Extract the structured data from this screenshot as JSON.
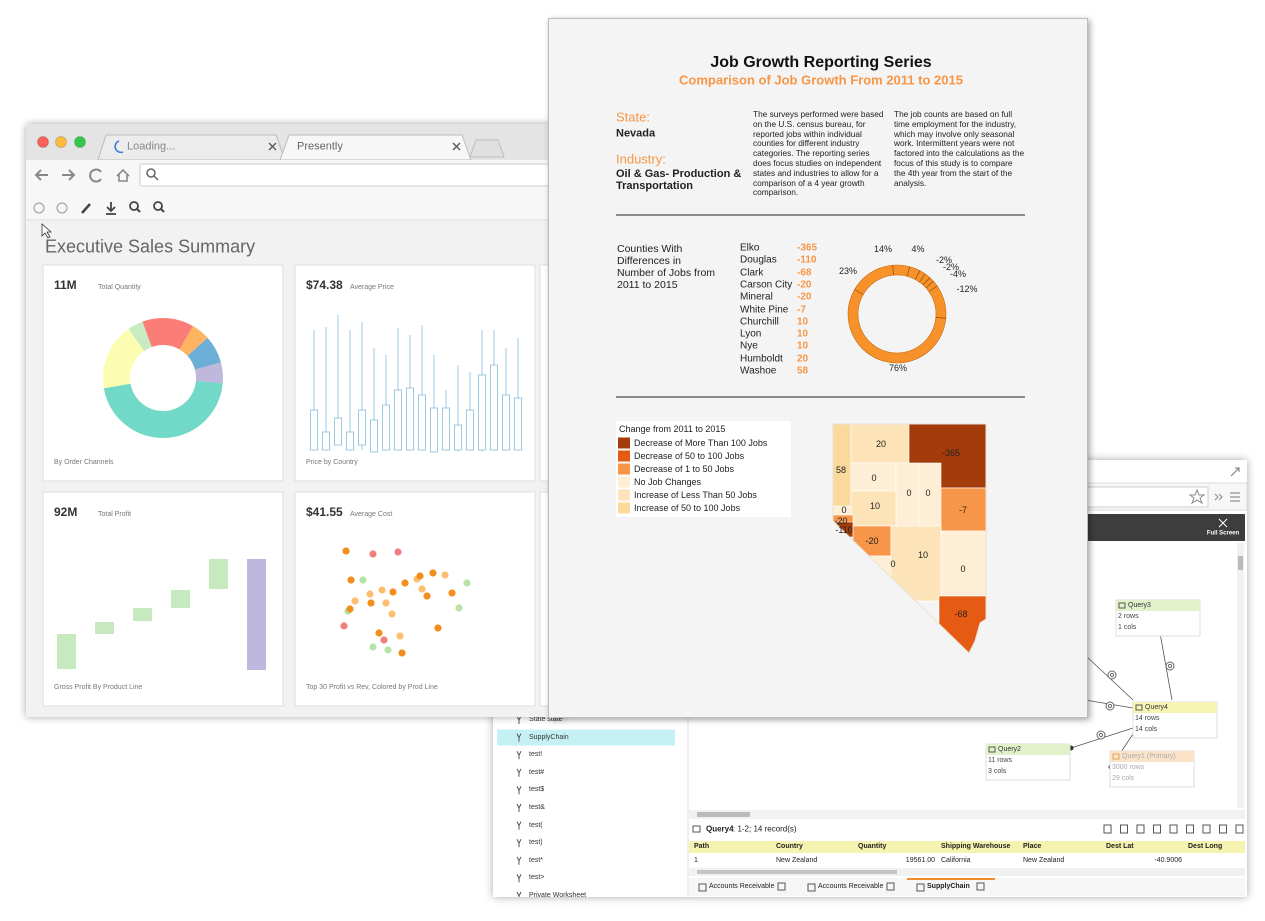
{
  "query_window": {
    "full_screen": "Full Screen",
    "tree": [
      "State state",
      "SupplyChain",
      "test!",
      "test#",
      "test$",
      "test&",
      "test(",
      "test)",
      "test*",
      "test>",
      "Private Worksheet"
    ],
    "nodes": [
      {
        "title": "Query3",
        "rows": "2 rows",
        "cols": "1 cols"
      },
      {
        "title": "Query4",
        "rows": "14 rows",
        "cols": "14 cols"
      },
      {
        "title": "Query2",
        "rows": "11 rows",
        "cols": "3 cols"
      },
      {
        "title": "Query1 (Primary)",
        "rows": "3000 rows",
        "cols": "29 cols"
      }
    ],
    "result": {
      "query": "Query4",
      "info": ": 1-2; 14 record(s)"
    },
    "table": {
      "headers": [
        "Path",
        "Country",
        "Quantity",
        "Shipping Warehouse",
        "Place",
        "Dest Lat",
        "Dest Long"
      ],
      "rows": [
        [
          "1",
          "New Zealand",
          "19561.00",
          "California",
          "New Zealand",
          "-40.9006"
        ]
      ]
    },
    "tabs": [
      "Accounts Receivable",
      "Accounts Receivable",
      "SupplyChain"
    ]
  },
  "browser": {
    "tabs": [
      "Loading...",
      "Presently"
    ],
    "title": "Executive Sales Summary",
    "cards": [
      {
        "value": "11M",
        "label": "Total Quantity",
        "caption": "By Order Channels"
      },
      {
        "value": "$74.38",
        "label": "Average Price",
        "caption": "Price by Country"
      },
      {
        "value": "92M",
        "label": "Total Profit",
        "caption": "Gross Profit By Product Line"
      },
      {
        "value": "$41.55",
        "label": "Average Cost",
        "caption": "Top 30 Profit vs Rev, Colored by Prod Line"
      }
    ]
  },
  "report": {
    "title": "Job Growth Reporting Series",
    "subtitle": "Comparison of Job Growth From 2011 to 2015",
    "state_label": "State:",
    "state": "Nevada",
    "industry_label": "Industry:",
    "industry": "Oil & Gas- Production & Transportation",
    "notes": [
      "The surveys performed were based on the U.S. census bureau, for reported jobs within individual counties for different industry categories. The reporting series does focus studies on independent states and industries to allow for a comparison of a 4 year growth comparison.",
      "The job counts are based on full time employment for the industry, which may involve only seasonal work. Intermittent years were not factored into the calculations as the focus of this study is to compare the 4th year from the start of the analysis."
    ],
    "counties_title": "Counties With Differences in Number of Jobs from 2011 to 2015",
    "counties": [
      {
        "name": "Elko",
        "change": "-365"
      },
      {
        "name": "Douglas",
        "change": "-110"
      },
      {
        "name": "Clark",
        "change": "-68"
      },
      {
        "name": "Carson City",
        "change": "-20"
      },
      {
        "name": "Mineral",
        "change": "-20"
      },
      {
        "name": "White Pine",
        "change": "-7"
      },
      {
        "name": "Churchill",
        "change": "10"
      },
      {
        "name": "Lyon",
        "change": "10"
      },
      {
        "name": "Nye",
        "change": "10"
      },
      {
        "name": "Humboldt",
        "change": "20"
      },
      {
        "name": "Washoe",
        "change": "58"
      }
    ],
    "donut_labels": [
      "14%",
      "4%",
      "-2%",
      "-2%",
      "-4%",
      "-12%",
      "23%",
      "76%"
    ],
    "legend_title": "Change from 2011 to 2015",
    "legend": [
      "Decrease of More Than 100 Jobs",
      "Decrease of 50 to 100 Jobs",
      "Decrease of 1 to 50 Jobs",
      "No Job Changes",
      "Increase of Less Than 50 Jobs",
      "Increase of 50 to 100 Jobs"
    ],
    "map_labels": [
      "20",
      "-365",
      "58",
      "0",
      "10",
      "0",
      "0",
      "-7",
      "0",
      "-20",
      "-110",
      "-20",
      "0",
      "10",
      "0",
      "-68"
    ]
  }
}
